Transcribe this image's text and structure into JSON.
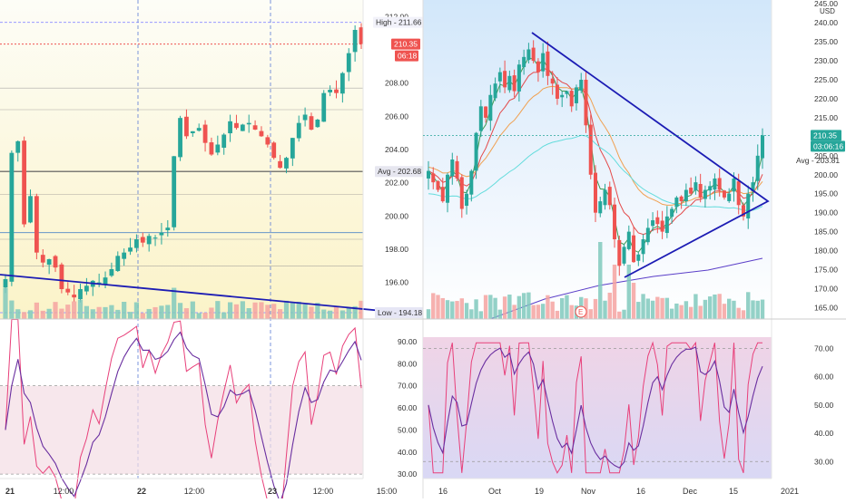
{
  "colors": {
    "up": "#26a69a",
    "down": "#ef5350",
    "trendline": "#1c1cb4",
    "ema_fast": "#3c9a52",
    "ema_mid": "#e34848",
    "ema_slow": "#f0a050",
    "ema_long": "#64dcdc",
    "ema_longest": "#5a3ec8",
    "rsi": "#e8407a",
    "rsi_signal": "#6a2fa0"
  },
  "left": {
    "price_axis": {
      "unit": "",
      "ticks": [
        "212.00",
        "208.00",
        "206.00",
        "204.00",
        "202.00",
        "200.00",
        "198.00",
        "196.00"
      ],
      "tick_values": [
        212,
        208,
        206,
        204,
        202,
        200,
        198,
        196
      ],
      "high_label": "High - 211.66",
      "last_price": "210.35",
      "countdown": "06:18",
      "avg_label": "Avg - 202.68",
      "low_label": "Low - 194.18"
    },
    "rsi_axis": {
      "ticks": [
        "90.00",
        "80.00",
        "70.00",
        "60.00",
        "50.00",
        "40.00",
        "30.00"
      ],
      "tick_values": [
        90,
        80,
        70,
        60,
        50,
        40,
        30
      ]
    },
    "time_axis": [
      {
        "label": "21",
        "bold": true
      },
      {
        "label": "12:00",
        "bold": false
      },
      {
        "label": "22",
        "bold": true
      },
      {
        "label": "12:00",
        "bold": false
      },
      {
        "label": "23",
        "bold": true
      },
      {
        "label": "12:00",
        "bold": false
      },
      {
        "label": "15:00",
        "bold": false
      }
    ]
  },
  "right": {
    "price_axis": {
      "unit": "USD",
      "ticks": [
        "245.00",
        "240.00",
        "235.00",
        "230.00",
        "225.00",
        "220.00",
        "215.00",
        "205.00",
        "200.00",
        "195.00",
        "190.00",
        "185.00",
        "180.00",
        "175.00",
        "170.00",
        "165.00"
      ],
      "tick_values": [
        245,
        240,
        235,
        230,
        225,
        220,
        215,
        205,
        200,
        195,
        190,
        185,
        180,
        175,
        170,
        165
      ],
      "last_price": "210.35",
      "countdown": "03:06:16",
      "avg_label": "Avg - 203.81"
    },
    "rsi_axis": {
      "ticks": [
        "70.00",
        "60.00",
        "50.00",
        "40.00",
        "30.00"
      ],
      "tick_values": [
        70,
        60,
        50,
        40,
        30
      ]
    },
    "time_axis": [
      "16",
      "Oct",
      "19",
      "Nov",
      "16",
      "Dec",
      "15",
      "2021"
    ],
    "earnings_marker": "E"
  },
  "chart_data": [
    {
      "type": "candlestick",
      "panel": "left intraday",
      "x_ticks": [
        "21",
        "12:00",
        "22",
        "12:00",
        "23",
        "12:00",
        "15:00"
      ],
      "y_ticks": [
        212,
        208,
        206,
        204,
        202,
        200,
        198,
        196
      ],
      "last": 210.35,
      "high": 211.66,
      "avg": 202.68,
      "low": 194.18,
      "close_series": [
        196.2,
        203.8,
        204.5,
        199.5,
        201.2,
        197.8,
        197.2,
        197.4,
        196.9,
        195.6,
        195.4,
        195.1,
        195.6,
        195.8,
        196.1,
        196.0,
        196.3,
        196.8,
        197.6,
        197.8,
        198.1,
        198.6,
        198.4,
        198.8,
        198.7,
        199.0,
        199.3,
        203.6,
        205.9,
        204.8,
        205.1,
        205.3,
        204.4,
        203.7,
        204.3,
        204.9,
        205.7,
        205.3,
        205.5,
        205.6,
        205.2,
        204.8,
        204.3,
        203.5,
        202.9,
        203.5,
        204.7,
        205.6,
        206.1,
        205.2,
        205.8,
        207.4,
        207.6,
        207.4,
        208.6,
        209.8,
        211.2,
        210.35
      ],
      "rsi": {
        "range": [
          30,
          90
        ],
        "ob": 70,
        "os": 30
      }
    },
    {
      "type": "candlestick",
      "panel": "right daily",
      "x_ticks": [
        "16",
        "Oct",
        "19",
        "Nov",
        "16",
        "Dec",
        "15",
        "2021"
      ],
      "y_ticks": [
        245,
        240,
        235,
        230,
        225,
        220,
        215,
        205,
        200,
        195,
        190,
        185,
        180,
        175,
        170,
        165
      ],
      "last": 210.35,
      "avg": 203.81,
      "close_series": [
        201,
        198,
        196,
        193,
        200,
        204,
        199,
        191,
        195,
        201,
        211,
        218,
        215,
        221,
        224,
        227,
        223,
        226,
        222,
        229,
        231,
        233,
        230,
        227,
        232,
        226,
        224,
        220,
        221,
        222,
        218,
        223,
        225,
        213,
        200,
        190,
        193,
        196,
        192,
        183,
        176,
        181,
        185,
        177,
        179,
        183,
        186,
        188,
        187,
        185,
        189,
        191,
        194,
        193,
        196,
        195,
        198,
        194,
        196,
        197,
        199,
        196,
        194,
        195,
        199,
        192,
        189,
        195,
        198,
        205,
        210.35
      ],
      "rsi": {
        "range": [
          25,
          72
        ],
        "ob": 70,
        "os": 30
      }
    }
  ]
}
